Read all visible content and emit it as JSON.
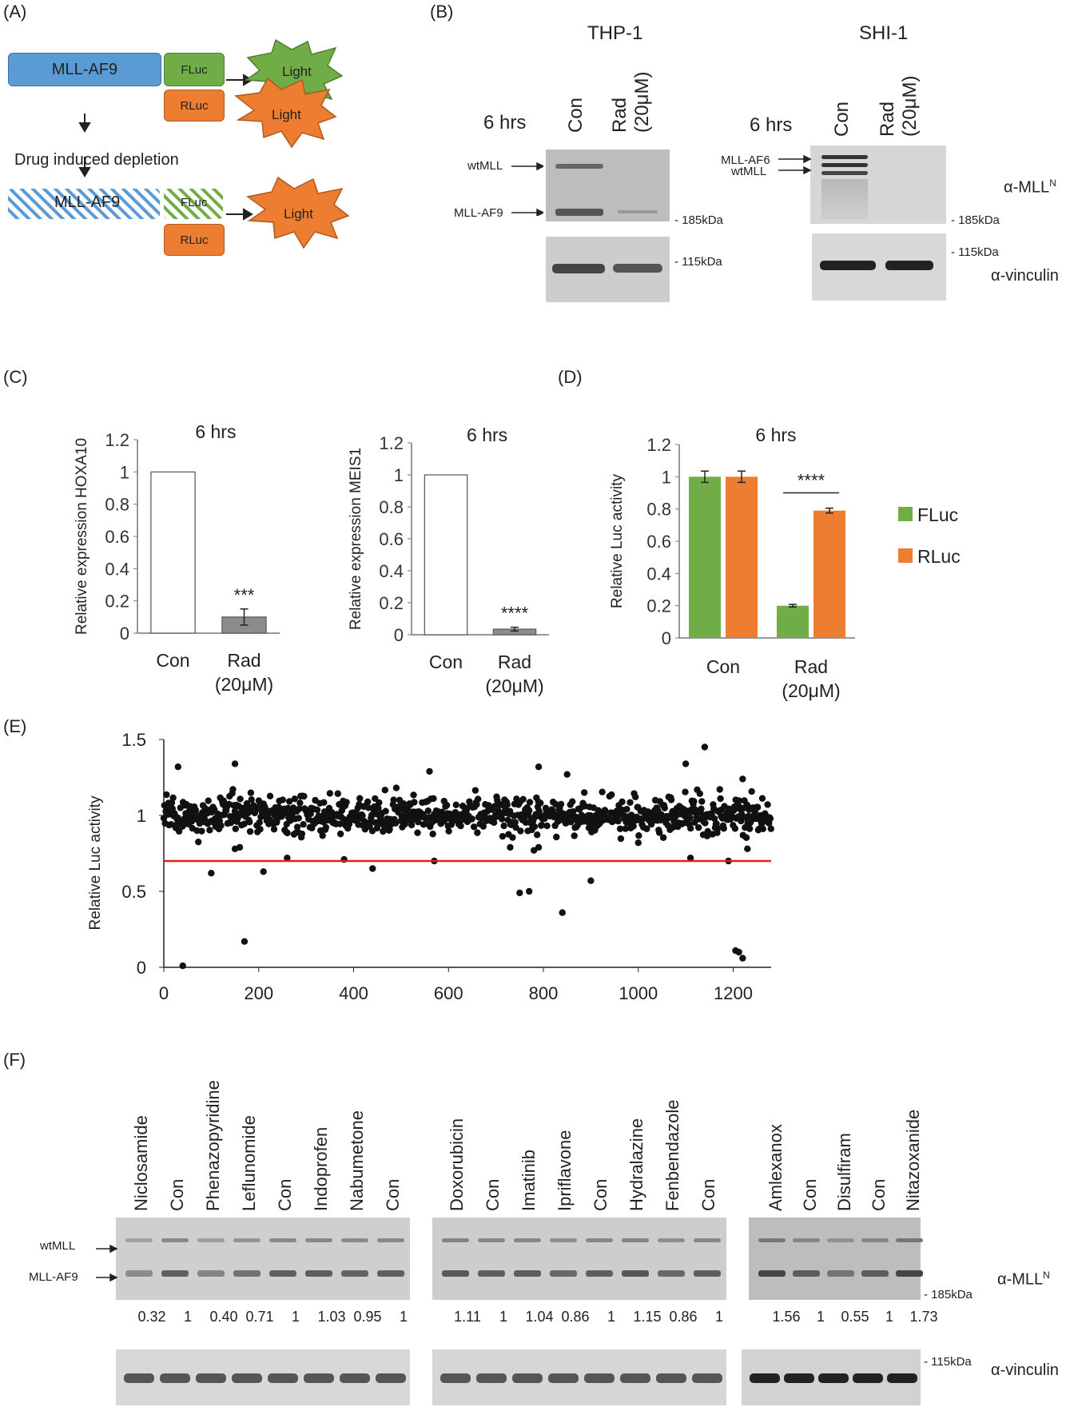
{
  "panelA": {
    "label": "(A)",
    "mll_af9": "MLL-AF9",
    "fluc": "FLuc",
    "rluc": "RLuc",
    "light": "Light",
    "depletion": "Drug induced depletion",
    "colors": {
      "blue": "#5b9bd5",
      "green": "#70ad47",
      "orange": "#ed7d31"
    }
  },
  "panelB": {
    "label": "(B)",
    "thp1": {
      "title": "THP-1",
      "time": "6 hrs",
      "lanes": [
        "Con",
        "Rad",
        "(20μM)"
      ],
      "bands": [
        "wtMLL",
        "MLL-AF9"
      ],
      "markers": [
        "- 185kDa",
        "- 115kDa"
      ]
    },
    "shi1": {
      "title": "SHI-1",
      "time": "6 hrs",
      "lanes": [
        "Con",
        "Rad",
        "(20μM)"
      ],
      "bands": [
        "MLL-AF6",
        "wtMLL"
      ],
      "markers": [
        "- 185kDa",
        "- 115kDa"
      ]
    },
    "ab_mll": "α-MLL",
    "ab_mll_sup": "N",
    "ab_vinculin": "α-vinculin"
  },
  "panelC": {
    "label": "(C)"
  },
  "panelD": {
    "label": "(D)"
  },
  "panelE": {
    "label": "(E)"
  },
  "panelF": {
    "label": "(F)",
    "group1": {
      "lanes": [
        "Niclosamide",
        "Con",
        "Phenazopyridine",
        "Leflunomide",
        "Con",
        "Indoprofen",
        "Nabumetone",
        "Con"
      ],
      "values": [
        "0.32",
        "1",
        "0.40",
        "0.71",
        "1",
        "1.03",
        "0.95",
        "1"
      ]
    },
    "group2": {
      "lanes": [
        "Doxorubicin",
        "Con",
        "Imatinib",
        "Ipriflavone",
        "Con",
        "Hydralazine",
        "Fenbendazole",
        "Con"
      ],
      "values": [
        "1.11",
        "1",
        "1.04",
        "0.86",
        "1",
        "1.15",
        "0.86",
        "1"
      ]
    },
    "group3": {
      "lanes": [
        "Amlexanox",
        "Con",
        "Disulfiram",
        "Con",
        "Nitazoxanide"
      ],
      "values": [
        "1.56",
        "1",
        "0.55",
        "1",
        "1.73"
      ]
    },
    "bands": [
      "wtMLL",
      "MLL-AF9"
    ],
    "markers": [
      "- 185kDa",
      "- 115kDa"
    ],
    "ab_mll": "α-MLL",
    "ab_mll_sup": "N",
    "ab_vinculin": "α-vinculin"
  },
  "chart_data": [
    {
      "type": "bar",
      "id": "C1",
      "title": "6 hrs",
      "ylabel": "Relative expression HOXA10",
      "categories": [
        "Con",
        "Rad (20μM)"
      ],
      "values": [
        1,
        0.1
      ],
      "errors": [
        0,
        0.05
      ],
      "significance": [
        "",
        "***"
      ],
      "ylim": [
        0,
        1.2
      ],
      "yticks": [
        0,
        0.2,
        0.4,
        0.6,
        0.8,
        1,
        1.2
      ],
      "colors": [
        "#ffffff",
        "#8c8c8c"
      ]
    },
    {
      "type": "bar",
      "id": "C2",
      "title": "6 hrs",
      "ylabel": "Relative expression MEIS1",
      "categories": [
        "Con",
        "Rad (20μM)"
      ],
      "values": [
        1,
        0.035
      ],
      "errors": [
        0,
        0.012
      ],
      "significance": [
        "",
        "****"
      ],
      "ylim": [
        0,
        1.2
      ],
      "yticks": [
        0,
        0.2,
        0.4,
        0.6,
        0.8,
        1,
        1.2
      ],
      "colors": [
        "#ffffff",
        "#8c8c8c"
      ]
    },
    {
      "type": "bar",
      "id": "D",
      "title": "6 hrs",
      "ylabel": "Relative Luc activity",
      "categories": [
        "Con",
        "Rad (20μM)"
      ],
      "series": [
        {
          "name": "FLuc",
          "values": [
            1,
            0.2
          ],
          "errors": [
            0.035,
            0.008
          ],
          "color": "#70ad47"
        },
        {
          "name": "RLuc",
          "values": [
            1,
            0.79
          ],
          "errors": [
            0.035,
            0.015
          ],
          "color": "#ed7d31"
        }
      ],
      "significance": "****",
      "ylim": [
        0,
        1.2
      ],
      "yticks": [
        0,
        0.2,
        0.4,
        0.6,
        0.8,
        1,
        1.2
      ],
      "legend": "right"
    },
    {
      "type": "scatter",
      "id": "E",
      "ylabel": "Relative Luc activity",
      "xlim": [
        0,
        1280
      ],
      "ylim": [
        0,
        1.5
      ],
      "xticks": [
        0,
        200,
        400,
        600,
        800,
        1000,
        1200
      ],
      "yticks": [
        0,
        0.5,
        1,
        1.5
      ],
      "threshold": 0.7,
      "threshold_color": "#e0201b",
      "n_points": 1280,
      "center": 1.0,
      "spread": 0.06,
      "outliers": [
        {
          "x": 40,
          "y": 0.01
        },
        {
          "x": 170,
          "y": 0.17
        },
        {
          "x": 100,
          "y": 0.62
        },
        {
          "x": 210,
          "y": 0.63
        },
        {
          "x": 440,
          "y": 0.65
        },
        {
          "x": 900,
          "y": 0.57
        },
        {
          "x": 750,
          "y": 0.49
        },
        {
          "x": 770,
          "y": 0.5
        },
        {
          "x": 840,
          "y": 0.36
        },
        {
          "x": 1205,
          "y": 0.11
        },
        {
          "x": 1212,
          "y": 0.1
        },
        {
          "x": 1220,
          "y": 0.06
        },
        {
          "x": 1190,
          "y": 0.7
        },
        {
          "x": 1110,
          "y": 0.72
        },
        {
          "x": 570,
          "y": 0.7
        },
        {
          "x": 380,
          "y": 0.71
        },
        {
          "x": 260,
          "y": 0.72
        },
        {
          "x": 30,
          "y": 1.32
        },
        {
          "x": 150,
          "y": 1.34
        },
        {
          "x": 560,
          "y": 1.29
        },
        {
          "x": 790,
          "y": 1.32
        },
        {
          "x": 1140,
          "y": 1.45
        },
        {
          "x": 1100,
          "y": 1.34
        },
        {
          "x": 1220,
          "y": 1.24
        },
        {
          "x": 850,
          "y": 1.27
        },
        {
          "x": 780,
          "y": 0.77
        },
        {
          "x": 790,
          "y": 0.79
        },
        {
          "x": 730,
          "y": 0.79
        },
        {
          "x": 150,
          "y": 0.78
        },
        {
          "x": 160,
          "y": 0.79
        },
        {
          "x": 1230,
          "y": 0.78
        },
        {
          "x": 1000,
          "y": 0.82
        }
      ]
    }
  ]
}
